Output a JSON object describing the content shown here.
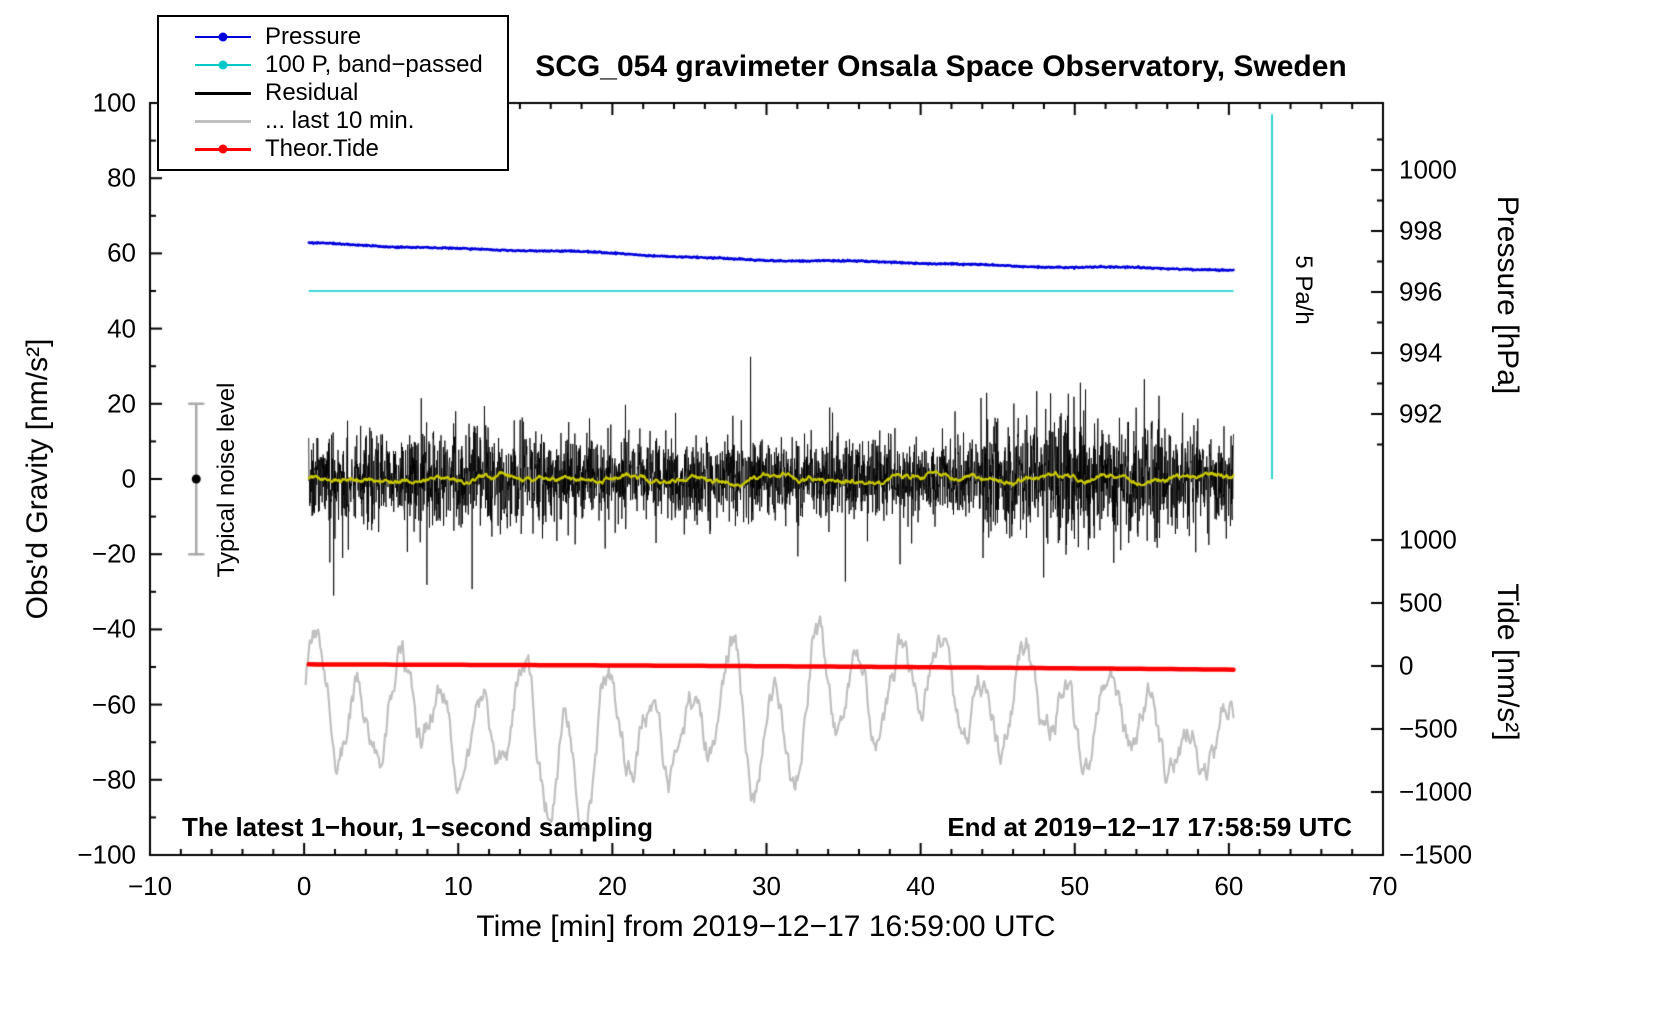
{
  "chart_data": {
    "type": "line",
    "title": "SCG_054 gravimeter Onsala Space Observatory, Sweden",
    "xlabel": "Time [min] from 2019−12−17 16:59:00 UTC",
    "legend_position": "upper-left",
    "grid": false,
    "axes": {
      "x": {
        "range": [
          -10,
          70
        ],
        "major_ticks": [
          -10,
          0,
          10,
          20,
          30,
          40,
          50,
          60,
          70
        ],
        "tick_labels": [
          "−10",
          "0",
          "10",
          "20",
          "30",
          "40",
          "50",
          "60",
          "70"
        ],
        "minor_step": 2
      },
      "gravity": {
        "label": "Obs'd Gravity [nm/s²]",
        "range": [
          -100,
          100
        ],
        "major_ticks": [
          100,
          80,
          60,
          40,
          20,
          0,
          -20,
          -40,
          -60,
          -80,
          -100
        ],
        "tick_labels": [
          "100",
          "80",
          "60",
          "40",
          "20",
          "0",
          "−20",
          "−40",
          "−60",
          "−80",
          "−100"
        ],
        "minor_step": 10
      },
      "pressure": {
        "label": "Pressure [hPa]",
        "major_ticks": [
          1000,
          998,
          996,
          994,
          992
        ],
        "tick_labels": [
          "1000",
          "998",
          "996",
          "994",
          "992"
        ],
        "minor_ticks": [
          1001,
          999,
          997,
          995,
          993,
          991
        ]
      },
      "tide": {
        "label": "Tide [nm/s²]",
        "major_ticks": [
          1000,
          500,
          0,
          -500,
          -1000,
          -1500
        ],
        "tick_labels": [
          "1000",
          "500",
          "0",
          "−500",
          "−1000",
          "−1500"
        ]
      }
    },
    "legend": [
      {
        "label": "Pressure",
        "color": "#0000dd",
        "marker": true,
        "width": 2
      },
      {
        "label": "100 P, band−passed",
        "color": "#00c8c8",
        "marker": true,
        "width": 2
      },
      {
        "label": "Residual",
        "color": "#000000",
        "marker": false,
        "width": 3
      },
      {
        "label": "... last 10 min.",
        "color": "#c0c0c0",
        "marker": false,
        "width": 3
      },
      {
        "label": "Theor.Tide",
        "color": "#ff0000",
        "marker": true,
        "width": 3
      }
    ],
    "series": [
      {
        "id": "pressure",
        "axis": "pressure",
        "color": "#0000dd",
        "width": 2.5,
        "t_range": [
          0.3,
          60.3
        ],
        "start_hpa": 997.55,
        "end_hpa": 996.65,
        "wiggle_amp": 0.08,
        "noise": 0.012
      },
      {
        "id": "pressure_bandpassed",
        "axis": "gravity",
        "color": "#00c8c8",
        "width": 1.6,
        "t_range": [
          0.3,
          60.3
        ],
        "value": 50
      },
      {
        "id": "residual",
        "axis": "gravity",
        "color": "#000000",
        "width": 0.8,
        "t_range": [
          0.3,
          60.3
        ],
        "mean": 0,
        "std": 7,
        "spike_amp": 28,
        "points": 3600
      },
      {
        "id": "residual_smoothed",
        "axis": "gravity",
        "color": "#c8c800",
        "width": 2.2,
        "t_range": [
          0.3,
          60.3
        ],
        "mean": 0,
        "amp": 1.6,
        "points": 1200
      },
      {
        "id": "last_10_min",
        "axis": "gravity",
        "color": "#c0c0c0",
        "width": 2.2,
        "t_range": [
          0.1,
          60.3
        ],
        "mean": -64,
        "amp": 14,
        "points": 900
      },
      {
        "id": "theor_tide",
        "axis": "gravity",
        "color": "#ff0000",
        "width": 4.5,
        "t_range": [
          0.3,
          60.3
        ],
        "start": -49.3,
        "end": -50.7
      }
    ],
    "annotations": {
      "noise_label": "Typical noise level",
      "noise_bar": {
        "x": -7,
        "low": -20,
        "high": 20,
        "dot": 0,
        "color": "#aaaaaa"
      },
      "rate_label": "5 Pa/h",
      "rate_bar": {
        "x": 62.8,
        "low": 0,
        "high": 97,
        "color": "#00c8c8"
      },
      "sampling": "The latest 1−hour, 1−second sampling",
      "end_time": "End at 2019−12−17 17:58:59 UTC"
    }
  }
}
